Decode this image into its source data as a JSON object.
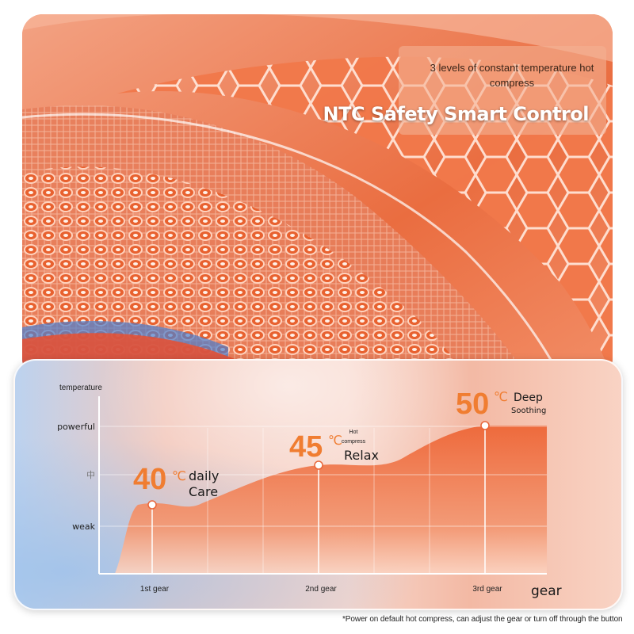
{
  "hero": {
    "subtitle": "3 levels of constant temperature hot compress",
    "title": "NTC Safety Smart Control"
  },
  "chart_data": {
    "type": "area",
    "ylabel": "temperature",
    "xlabel": "gear",
    "y_ticks": [
      "weak",
      "中",
      "powerful"
    ],
    "categories": [
      "1st gear",
      "2nd gear",
      "3rd gear"
    ],
    "series": [
      {
        "values": [
          40,
          45,
          50
        ]
      }
    ],
    "unit": "℃",
    "annotations": [
      {
        "value": "40",
        "unit": "℃",
        "text_line1": "daily",
        "text_line2": "Care",
        "note_line1": "",
        "note_line2": ""
      },
      {
        "value": "45",
        "unit": "℃",
        "text_line1": "",
        "text_line2": "Relax",
        "note_line1": "Hot",
        "note_line2": "compress"
      },
      {
        "value": "50",
        "unit": "℃",
        "text_line1": "Deep",
        "text_line2": "Soothing",
        "note_line1": "",
        "note_line2": ""
      }
    ],
    "colors": {
      "fill": "#ee6a3c",
      "accent": "#f07d31",
      "text": "#1a1a1a"
    }
  },
  "footnote": "*Power on default hot compress, can adjust the gear or turn off through the button"
}
